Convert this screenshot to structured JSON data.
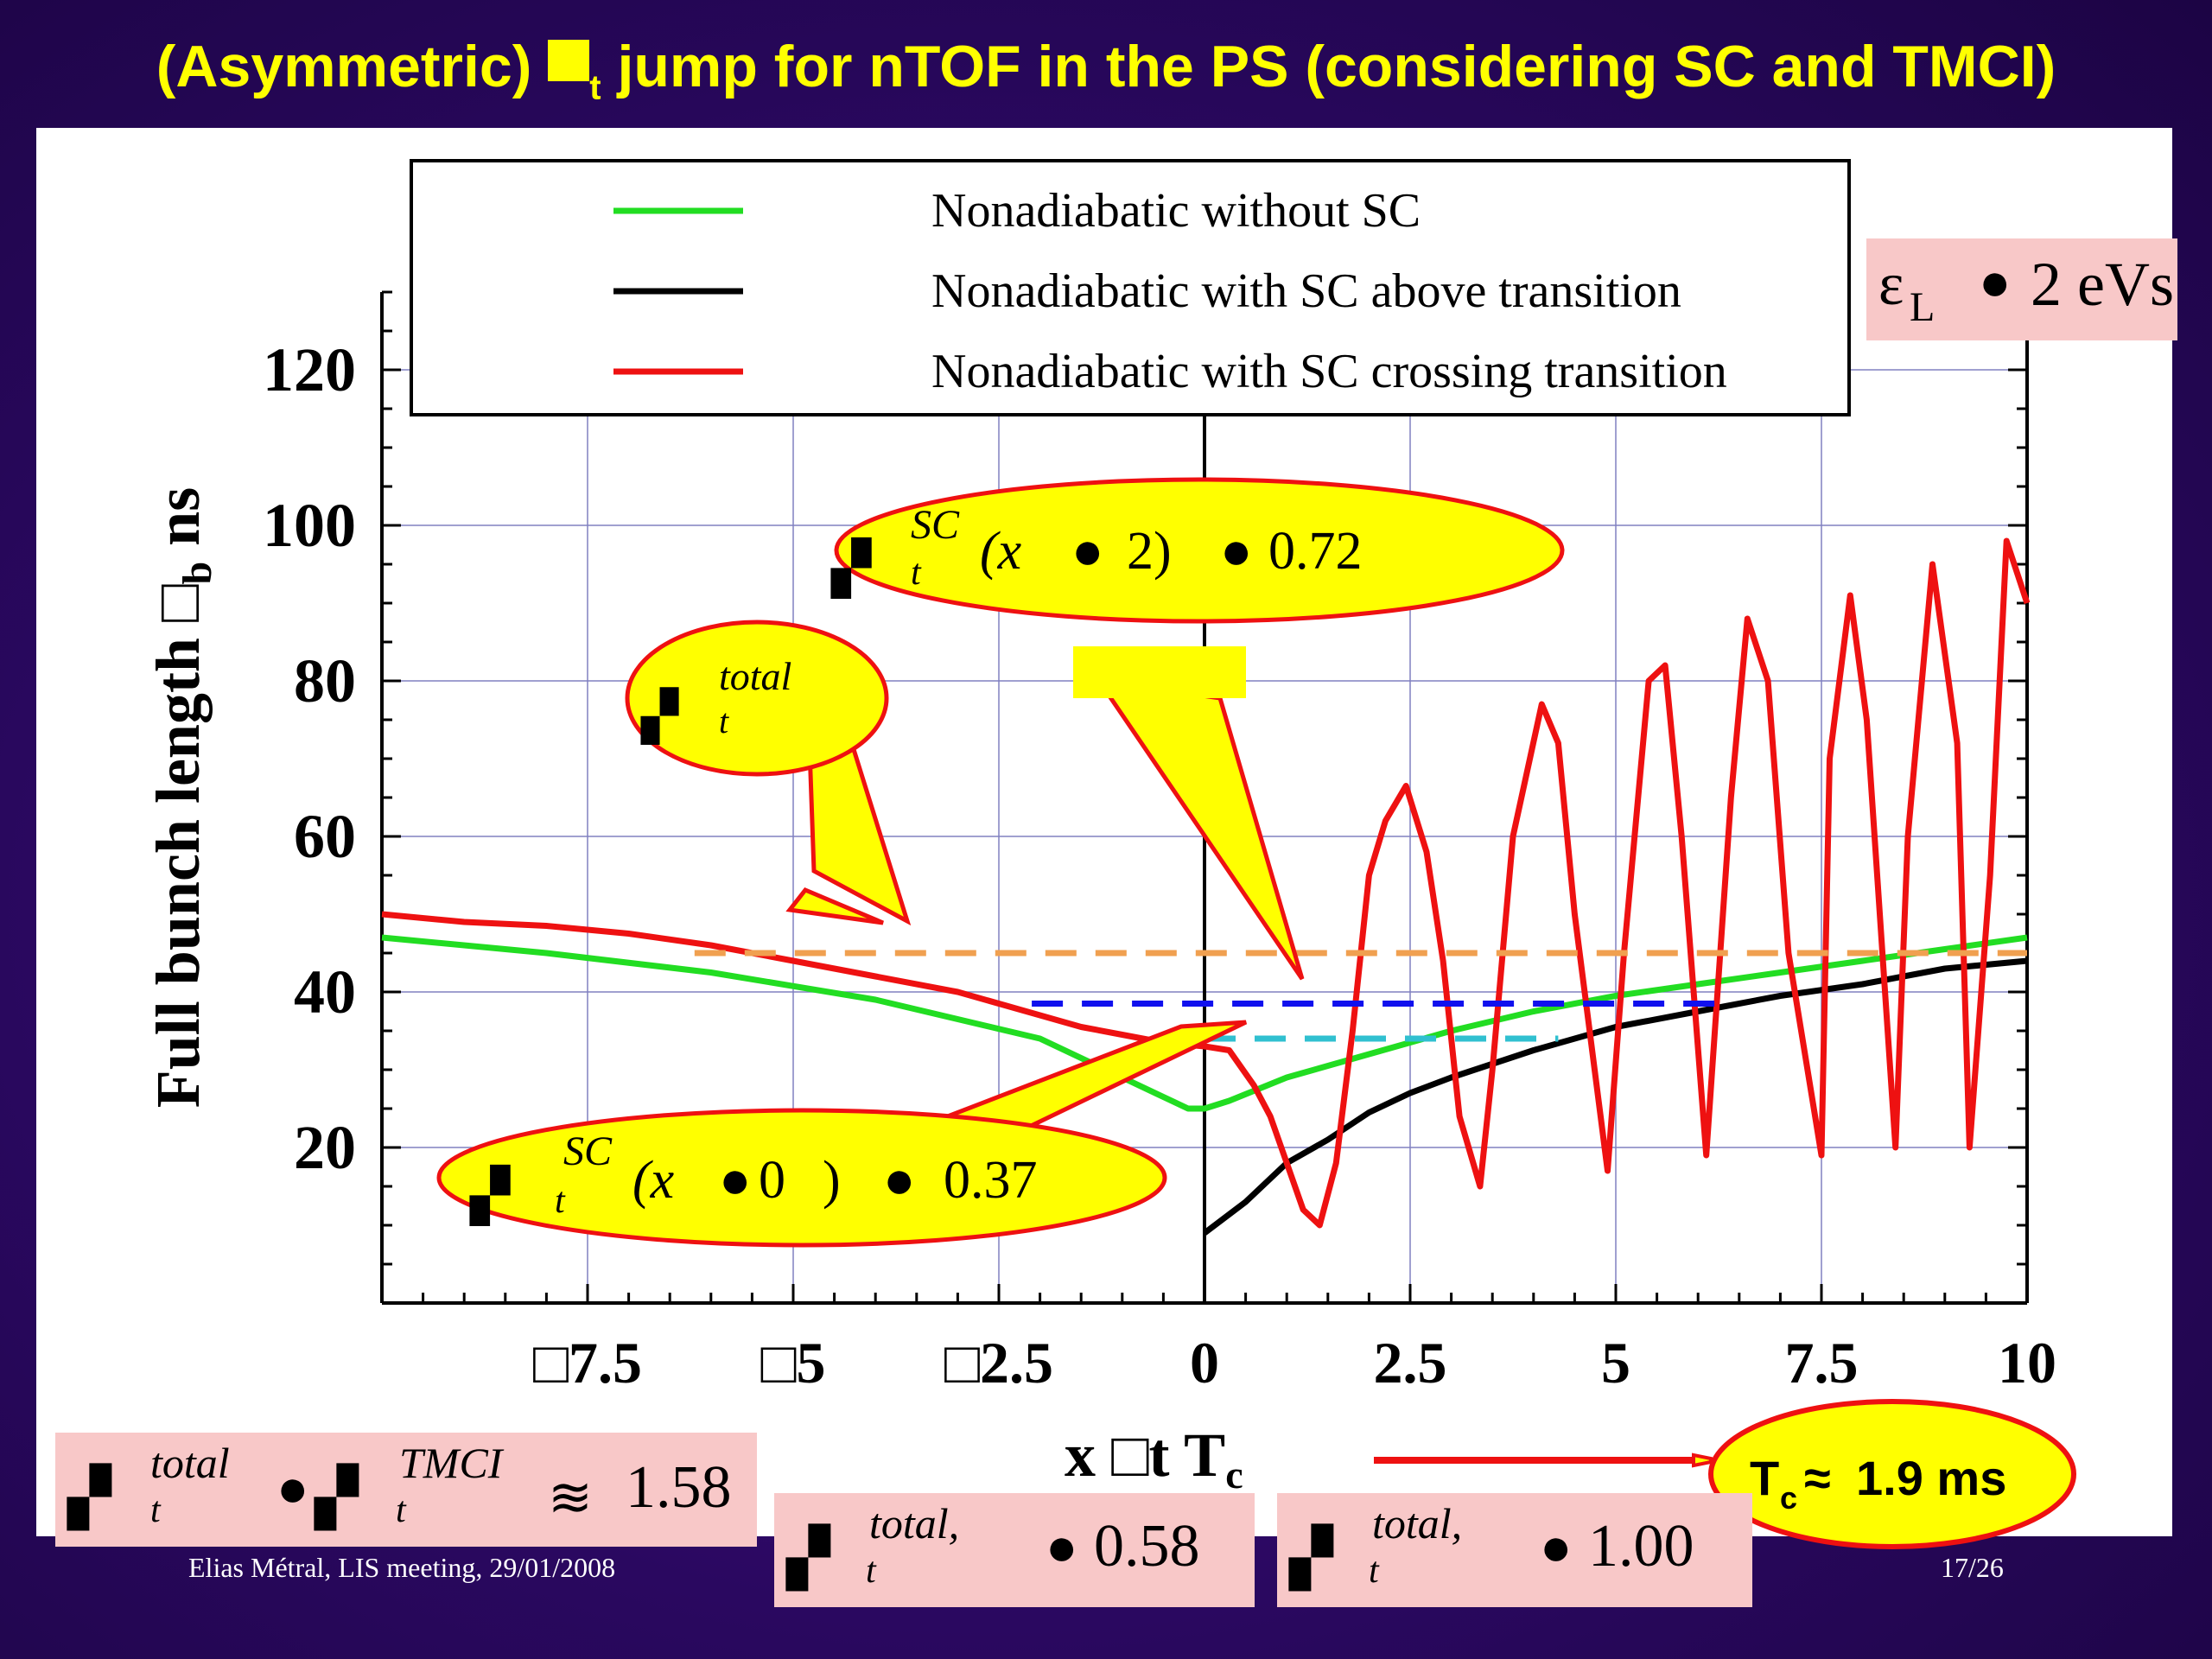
{
  "slide": {
    "title_pre": "(Asymmetric) ",
    "title_sub": "t",
    "title_post": " jump for nTOF in the PS (considering SC and TMCI)",
    "footer_left": "Elias Métral, LIS meeting, 29/01/2008",
    "footer_right": "17/26"
  },
  "colors": {
    "background": "#2a0860",
    "title": "#ffff00",
    "green": "#22dd22",
    "black": "#000000",
    "red": "#ee1111",
    "orange_dash": "#f0a050",
    "blue_dash": "#1010ee",
    "cyan_dash": "#30c0d0",
    "callout_fill": "#ffff00",
    "callout_border": "#ee1111",
    "pink_box": "#f8c8c8"
  },
  "annotations": {
    "emittance": "ε",
    "emittance_sub": "L",
    "emittance_value": "2 eVs",
    "callout_total_sup": "total",
    "callout_total_sub": "t",
    "callout_sc2_sup": "SC",
    "callout_sc2_sub": "t",
    "callout_sc2_expr": "(x",
    "callout_sc2_arg": "2)",
    "callout_sc2_value": "0.72",
    "callout_sc0_sup": "SC",
    "callout_sc0_sub": "t",
    "callout_sc0_expr": "(x",
    "callout_sc0_arg": "0",
    "callout_sc0_close": ")",
    "callout_sc0_value": "0.37",
    "tc_label": "T",
    "tc_sub": "c",
    "tc_value": "1.9 ms",
    "box1_sup1": "total",
    "box1_sub1": "t",
    "box1_sup2": "TMCI",
    "box1_sub2": "t",
    "box1_value": "1.58",
    "box2_sup": "total,",
    "box2_sub": "t",
    "box2_value": "0.58",
    "box3_sup": "total,",
    "box3_sub": "t",
    "box3_value": "1.00"
  },
  "chart_data": {
    "type": "line",
    "xlabel": "x",
    "xlabel_t": "t",
    "xlabel_tc": "T",
    "xlabel_tc_sub": "c",
    "ylabel": "Full bunch length",
    "ylabel_sub": "b",
    "ylabel_unit": "ns",
    "xlim": [
      -10,
      10
    ],
    "ylim": [
      0,
      130
    ],
    "x_ticks": [
      -7.5,
      -5,
      -2.5,
      0,
      2.5,
      5,
      7.5,
      10
    ],
    "x_tick_labels": [
      "7.5",
      "5",
      "2.5",
      "0",
      "2.5",
      "5",
      "7.5",
      "10"
    ],
    "y_ticks": [
      20,
      40,
      60,
      80,
      100,
      120
    ],
    "y_tick_labels": [
      "20",
      "40",
      "60",
      "80",
      "100",
      "120"
    ],
    "grid": true,
    "legend_position": "top",
    "series": [
      {
        "name": "Nonadiabatic without SC",
        "color": "#22dd22",
        "x": [
          -10,
          -8,
          -6,
          -4,
          -2,
          -1.5,
          -1,
          -0.5,
          -0.2,
          0,
          0.3,
          1,
          2,
          3,
          4,
          5,
          6,
          7,
          8,
          9,
          10
        ],
        "y": [
          47,
          45,
          42.5,
          39,
          34,
          31.5,
          29,
          26.5,
          25,
          25,
          26,
          29,
          32,
          35,
          37.5,
          39.5,
          41,
          42.5,
          44,
          45.5,
          47
        ]
      },
      {
        "name": "Nonadiabatic with SC above transition",
        "color": "#000000",
        "x": [
          0,
          0.5,
          1,
          1.5,
          2,
          2.5,
          3,
          4,
          5,
          6,
          7,
          8,
          9,
          10
        ],
        "y": [
          9,
          13,
          18,
          21,
          24.5,
          27,
          29,
          32.5,
          35.5,
          37.5,
          39.5,
          41,
          43,
          44
        ]
      },
      {
        "name": "Nonadiabatic with SC crossing transition",
        "color": "#ee1111",
        "x": [
          -10,
          -9,
          -8,
          -7,
          -6,
          -5,
          -4,
          -3,
          -2,
          -1.5,
          -1,
          -0.5,
          0,
          0.3,
          0.6,
          0.8,
          1,
          1.2,
          1.4,
          1.6,
          1.8,
          2.0,
          2.2,
          2.45,
          2.7,
          2.9,
          3.1,
          3.35,
          3.5,
          3.75,
          4.1,
          4.3,
          4.5,
          4.9,
          5.1,
          5.4,
          5.6,
          5.8,
          6.1,
          6.4,
          6.6,
          6.85,
          7.1,
          7.5,
          7.6,
          7.85,
          8.05,
          8.4,
          8.55,
          8.85,
          9.15,
          9.3,
          9.55,
          9.75,
          10
        ],
        "y": [
          50,
          49,
          48.5,
          47.5,
          46,
          44,
          42,
          40,
          37,
          35.5,
          34.5,
          33.5,
          33,
          32.5,
          28,
          24,
          18,
          12,
          10,
          18,
          35,
          55,
          62,
          66.5,
          58,
          44,
          24,
          15,
          30,
          60,
          77,
          72,
          50,
          17,
          45,
          80,
          82,
          60,
          19,
          65,
          88,
          80,
          45,
          19,
          70,
          91,
          75,
          20,
          60,
          95,
          72,
          20,
          55,
          98,
          90
        ]
      },
      {
        "name": "",
        "color": "#f0a050",
        "dashed": true,
        "x": [
          -6.2,
          10
        ],
        "y": [
          45,
          45
        ]
      },
      {
        "name": "",
        "color": "#1010ee",
        "dashed": true,
        "x": [
          -2.1,
          6.3
        ],
        "y": [
          38.5,
          38.5
        ]
      },
      {
        "name": "",
        "color": "#30c0d0",
        "dashed": true,
        "x": [
          0,
          4.3
        ],
        "y": [
          34,
          34
        ]
      }
    ]
  }
}
